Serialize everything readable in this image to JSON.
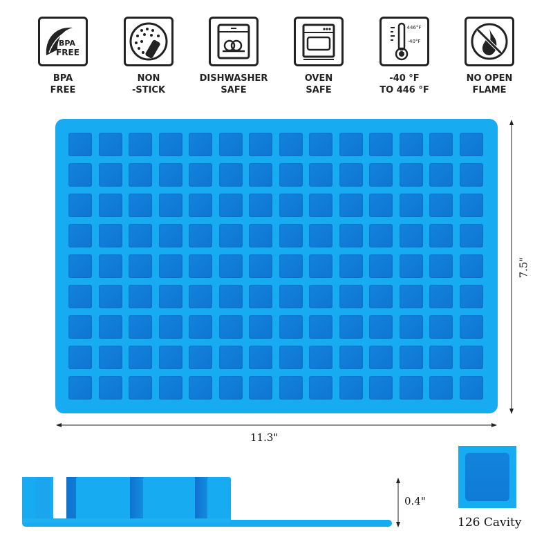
{
  "features": [
    {
      "icon": "bpa-free-leaf-icon",
      "icon_text": [
        "BPA",
        "FREE"
      ],
      "label": [
        "BPA",
        "FREE"
      ]
    },
    {
      "icon": "non-stick-pan-icon",
      "label": [
        "NON",
        "-STICK"
      ]
    },
    {
      "icon": "dishwasher-icon",
      "label": [
        "DISHWASHER",
        "SAFE"
      ]
    },
    {
      "icon": "oven-icon",
      "label": [
        "OVEN",
        "SAFE"
      ]
    },
    {
      "icon": "thermometer-icon",
      "icon_text": [
        "446°F",
        "-40°F"
      ],
      "label": [
        "-40 °F",
        "TO 446 °F"
      ]
    },
    {
      "icon": "no-open-flame-icon",
      "label": [
        "NO OPEN",
        "FLAME"
      ]
    }
  ],
  "tray": {
    "rows": 9,
    "columns": 14,
    "color": "#17abf1",
    "cavity_color": "#1080da"
  },
  "dimensions": {
    "width": "11.3\"",
    "height": "7.5\"",
    "depth": "0.4\""
  },
  "cavity_label": "126 Cavity"
}
